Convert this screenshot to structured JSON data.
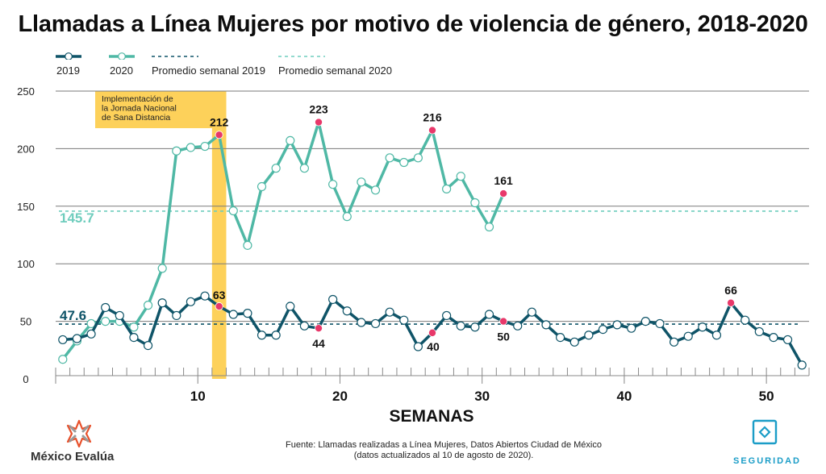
{
  "header": {
    "title": "Llamadas a Línea Mujeres por motivo de violencia de género, 2018-2020"
  },
  "legend": [
    {
      "label": "2019",
      "kind": "line-marker",
      "color": "#0f5468"
    },
    {
      "label": "2020",
      "kind": "line-marker",
      "color": "#4fb8a5"
    },
    {
      "label": "Promedio semanal 2019",
      "kind": "dashed",
      "color": "#0f5468"
    },
    {
      "label": "Promedio semanal 2020",
      "kind": "dashed",
      "color": "#6fcdbd"
    }
  ],
  "colors": {
    "series_2019": "#0f5468",
    "series_2020": "#4fb8a5",
    "avg_2020": "#6fcdbd",
    "highlight_point": "#e8386a",
    "band": "#fdd15a",
    "grid": "#7a7a7a",
    "brand_orange": "#e8502a",
    "brand_gray": "#9a9a9a",
    "seguridad": "#1b9dc7"
  },
  "chart_data": {
    "type": "line",
    "title": "Llamadas a Línea Mujeres por motivo de violencia de género, 2018-2020",
    "xlabel": "SEMANAS",
    "ylabel": "",
    "xlim": [
      0,
      53
    ],
    "ylim": [
      0,
      250
    ],
    "yticks": [
      0,
      50,
      100,
      150,
      200,
      250
    ],
    "xticks_labeled": [
      10,
      20,
      30,
      40,
      50
    ],
    "grid": "horizontal",
    "legend_position": "top-left",
    "series": [
      {
        "name": "2019",
        "x": [
          1,
          2,
          3,
          4,
          5,
          6,
          7,
          8,
          9,
          10,
          11,
          12,
          13,
          14,
          15,
          16,
          17,
          18,
          19,
          20,
          21,
          22,
          23,
          24,
          25,
          26,
          27,
          28,
          29,
          30,
          31,
          32,
          33,
          34,
          35,
          36,
          37,
          38,
          39,
          40,
          41,
          42,
          43,
          44,
          45,
          46,
          47,
          48,
          49,
          50,
          51,
          52,
          53
        ],
        "values": [
          34,
          35,
          39,
          62,
          55,
          36,
          29,
          66,
          55,
          67,
          72,
          63,
          56,
          57,
          38,
          38,
          63,
          46,
          44,
          69,
          59,
          49,
          48,
          58,
          51,
          28,
          40,
          55,
          46,
          45,
          56,
          50,
          46,
          58,
          47,
          36,
          32,
          38,
          43,
          47,
          44,
          50,
          48,
          32,
          37,
          45,
          38,
          66,
          51,
          41,
          36,
          34,
          12
        ],
        "highlighted": [
          {
            "week": 12,
            "value": 63,
            "label": "63"
          },
          {
            "week": 19,
            "value": 44,
            "label": "44"
          },
          {
            "week": 27,
            "value": 40,
            "label": "40"
          },
          {
            "week": 32,
            "value": 50,
            "label": "50"
          },
          {
            "week": 48,
            "value": 66,
            "label": "66"
          }
        ]
      },
      {
        "name": "2020",
        "x": [
          1,
          2,
          3,
          4,
          5,
          6,
          7,
          8,
          9,
          10,
          11,
          12,
          13,
          14,
          15,
          16,
          17,
          18,
          19,
          20,
          21,
          22,
          23,
          24,
          25,
          26,
          27,
          28,
          29,
          30,
          31,
          32
        ],
        "values": [
          17,
          33,
          48,
          50,
          50,
          45,
          64,
          96,
          198,
          201,
          202,
          212,
          146,
          116,
          167,
          183,
          207,
          183,
          223,
          169,
          141,
          171,
          164,
          192,
          188,
          192,
          216,
          165,
          176,
          153,
          132,
          161
        ],
        "highlighted": [
          {
            "week": 12,
            "value": 212,
            "label": "212"
          },
          {
            "week": 19,
            "value": 223,
            "label": "223"
          },
          {
            "week": 27,
            "value": 216,
            "label": "216"
          },
          {
            "week": 32,
            "value": 161,
            "label": "161"
          }
        ]
      }
    ],
    "reference_lines": [
      {
        "name": "Promedio semanal 2019",
        "value": 47.6,
        "label": "47.6"
      },
      {
        "name": "Promedio semanal 2020",
        "value": 145.7,
        "label": "145.7"
      }
    ],
    "annotations": [
      {
        "type": "band",
        "week": 12,
        "text": [
          "Implementación de",
          "la Jornada Nacional",
          "de Sana Distancia"
        ]
      }
    ]
  },
  "footer": {
    "source_line1": "Fuente: Llamadas realizadas a Línea Mujeres, Datos Abiertos Ciudad de México",
    "source_line2": "(datos actualizados al 10 de agosto de 2020).",
    "brand_left": "México Evalúa",
    "brand_right": "SEGURIDAD"
  }
}
